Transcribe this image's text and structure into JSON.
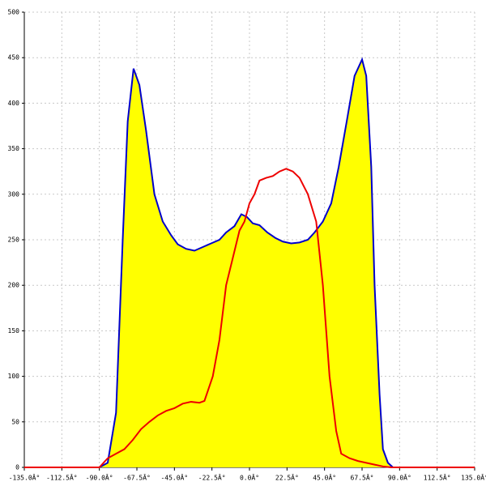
{
  "chart_data": {
    "type": "area",
    "xlim": [
      -135,
      135
    ],
    "xticks": [
      {
        "value": -135,
        "label": "-135.0Â°"
      },
      {
        "value": -112.5,
        "label": "-112.5Â°"
      },
      {
        "value": -90,
        "label": "-90.0Â°"
      },
      {
        "value": -67.5,
        "label": "-67.5Â°"
      },
      {
        "value": -45,
        "label": "-45.0Â°"
      },
      {
        "value": -22.5,
        "label": "-22.5Â°"
      },
      {
        "value": 0,
        "label": "0.0Â°"
      },
      {
        "value": 22.5,
        "label": "22.5Â°"
      },
      {
        "value": 45,
        "label": "45.0Â°"
      },
      {
        "value": 67.5,
        "label": "67.5Â°"
      },
      {
        "value": 90,
        "label": "90.0Â°"
      },
      {
        "value": 112.5,
        "label": "112.5Â°"
      },
      {
        "value": 135,
        "label": "135.0Â°"
      }
    ],
    "ylim": [
      0,
      500
    ],
    "yticks": [
      0,
      50,
      100,
      150,
      200,
      250,
      300,
      350,
      400,
      450,
      500
    ],
    "grid": true,
    "series": [
      {
        "color": "#0000cc",
        "fill": "#ffff00",
        "x": [
          -90,
          -85,
          -80,
          -76,
          -73,
          -69.5,
          -66,
          -62,
          -57,
          -52,
          -47,
          -43,
          -38,
          -33,
          -28,
          -23,
          -18,
          -14,
          -9,
          -4.9,
          -1.5,
          2,
          6,
          10.7,
          15.5,
          20,
          25,
          30,
          35,
          39,
          44,
          49,
          53.5,
          58.3,
          63,
          67.5,
          70,
          73,
          75,
          78,
          80,
          83,
          86
        ],
        "values": [
          0,
          5,
          60,
          250,
          380,
          438,
          420,
          370,
          300,
          270,
          255,
          245,
          240,
          238,
          242,
          246,
          250,
          258,
          265,
          278,
          275,
          268,
          266,
          258,
          252,
          248,
          246,
          247,
          250,
          258,
          270,
          290,
          330,
          380,
          430,
          448,
          430,
          330,
          200,
          80,
          20,
          5,
          0
        ]
      },
      {
        "color": "#ee0000",
        "x": [
          -135,
          -90,
          -85,
          -80,
          -75,
          -70,
          -65,
          -60,
          -55,
          -50,
          -45,
          -40,
          -35,
          -30,
          -27,
          -22,
          -18,
          -14,
          -10,
          -6,
          -3,
          0,
          3,
          6,
          10,
          14,
          18,
          22,
          26,
          30,
          35,
          40,
          44,
          48,
          52,
          55,
          60,
          65,
          70,
          75,
          80,
          85,
          135
        ],
        "values": [
          0,
          0,
          10,
          15,
          20,
          30,
          42,
          50,
          57,
          62,
          65,
          70,
          72,
          71,
          73,
          100,
          140,
          200,
          230,
          260,
          270,
          290,
          300,
          315,
          318,
          320,
          325,
          328,
          325,
          318,
          300,
          270,
          200,
          100,
          40,
          15,
          10,
          7,
          5,
          3,
          1,
          0,
          0
        ]
      }
    ]
  }
}
